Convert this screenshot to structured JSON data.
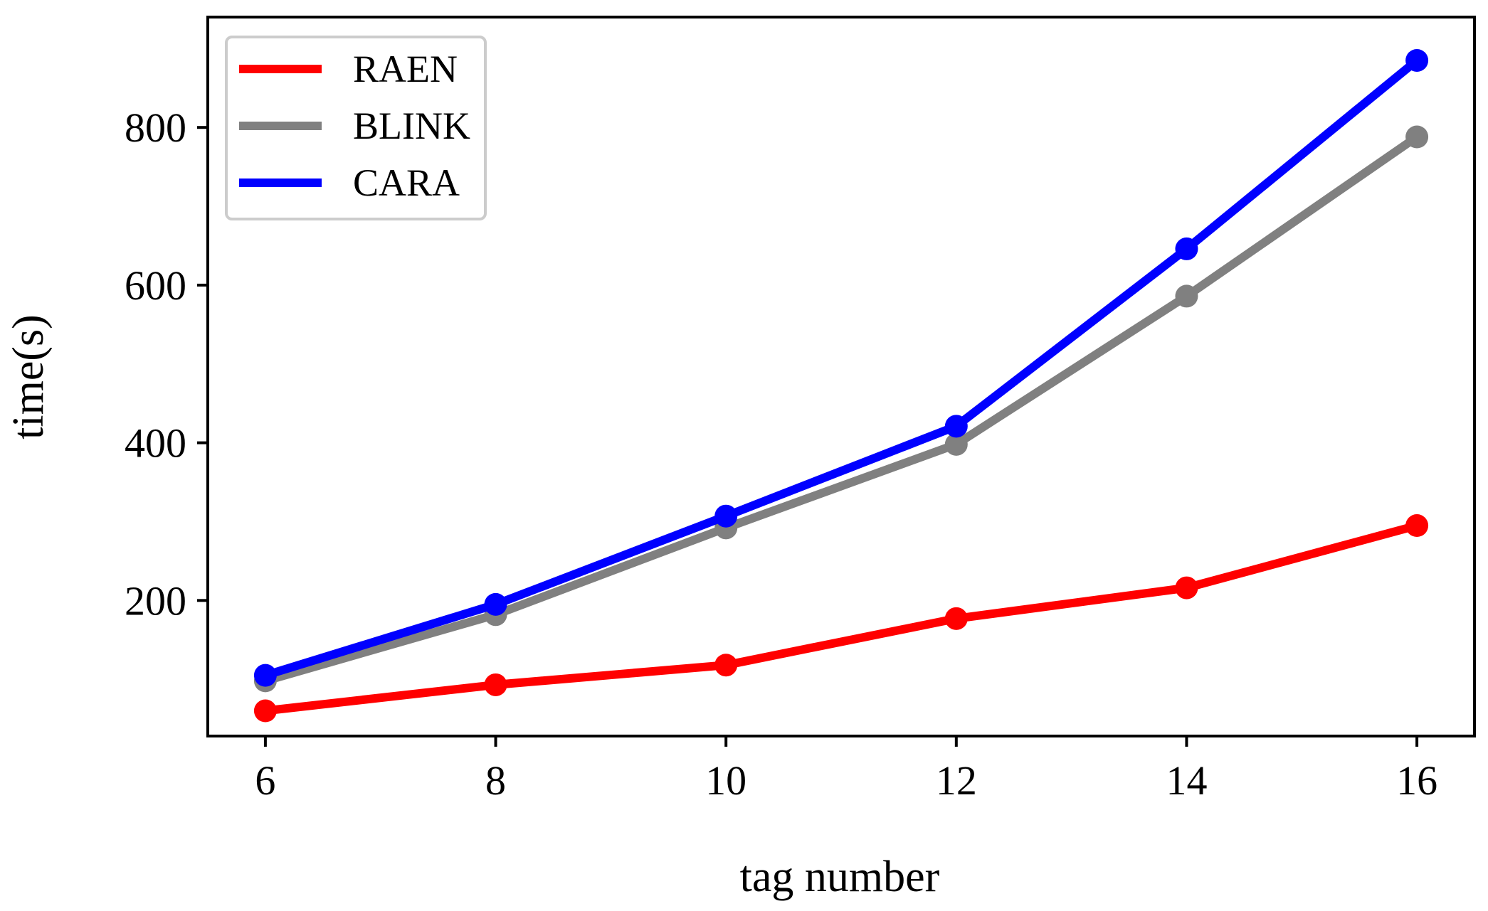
{
  "chart_data": {
    "type": "line",
    "title": "",
    "xlabel": "tag number",
    "ylabel": "time(s)",
    "x": [
      6,
      8,
      10,
      12,
      14,
      16
    ],
    "xlim": [
      5.5,
      16.5
    ],
    "ylim": [
      28,
      940
    ],
    "xticks": [
      6,
      8,
      10,
      12,
      14,
      16
    ],
    "yticks": [
      200,
      400,
      600,
      800
    ],
    "grid": false,
    "legend_position": "top-left",
    "series": [
      {
        "name": "RAEN",
        "color": "#ff0000",
        "values": [
          60,
          93,
          118,
          177,
          216,
          295
        ]
      },
      {
        "name": "BLINK",
        "color": "#808080",
        "values": [
          98,
          182,
          292,
          398,
          586,
          788
        ]
      },
      {
        "name": "CARA",
        "color": "#0000ff",
        "values": [
          105,
          195,
          307,
          421,
          646,
          885
        ]
      }
    ]
  }
}
